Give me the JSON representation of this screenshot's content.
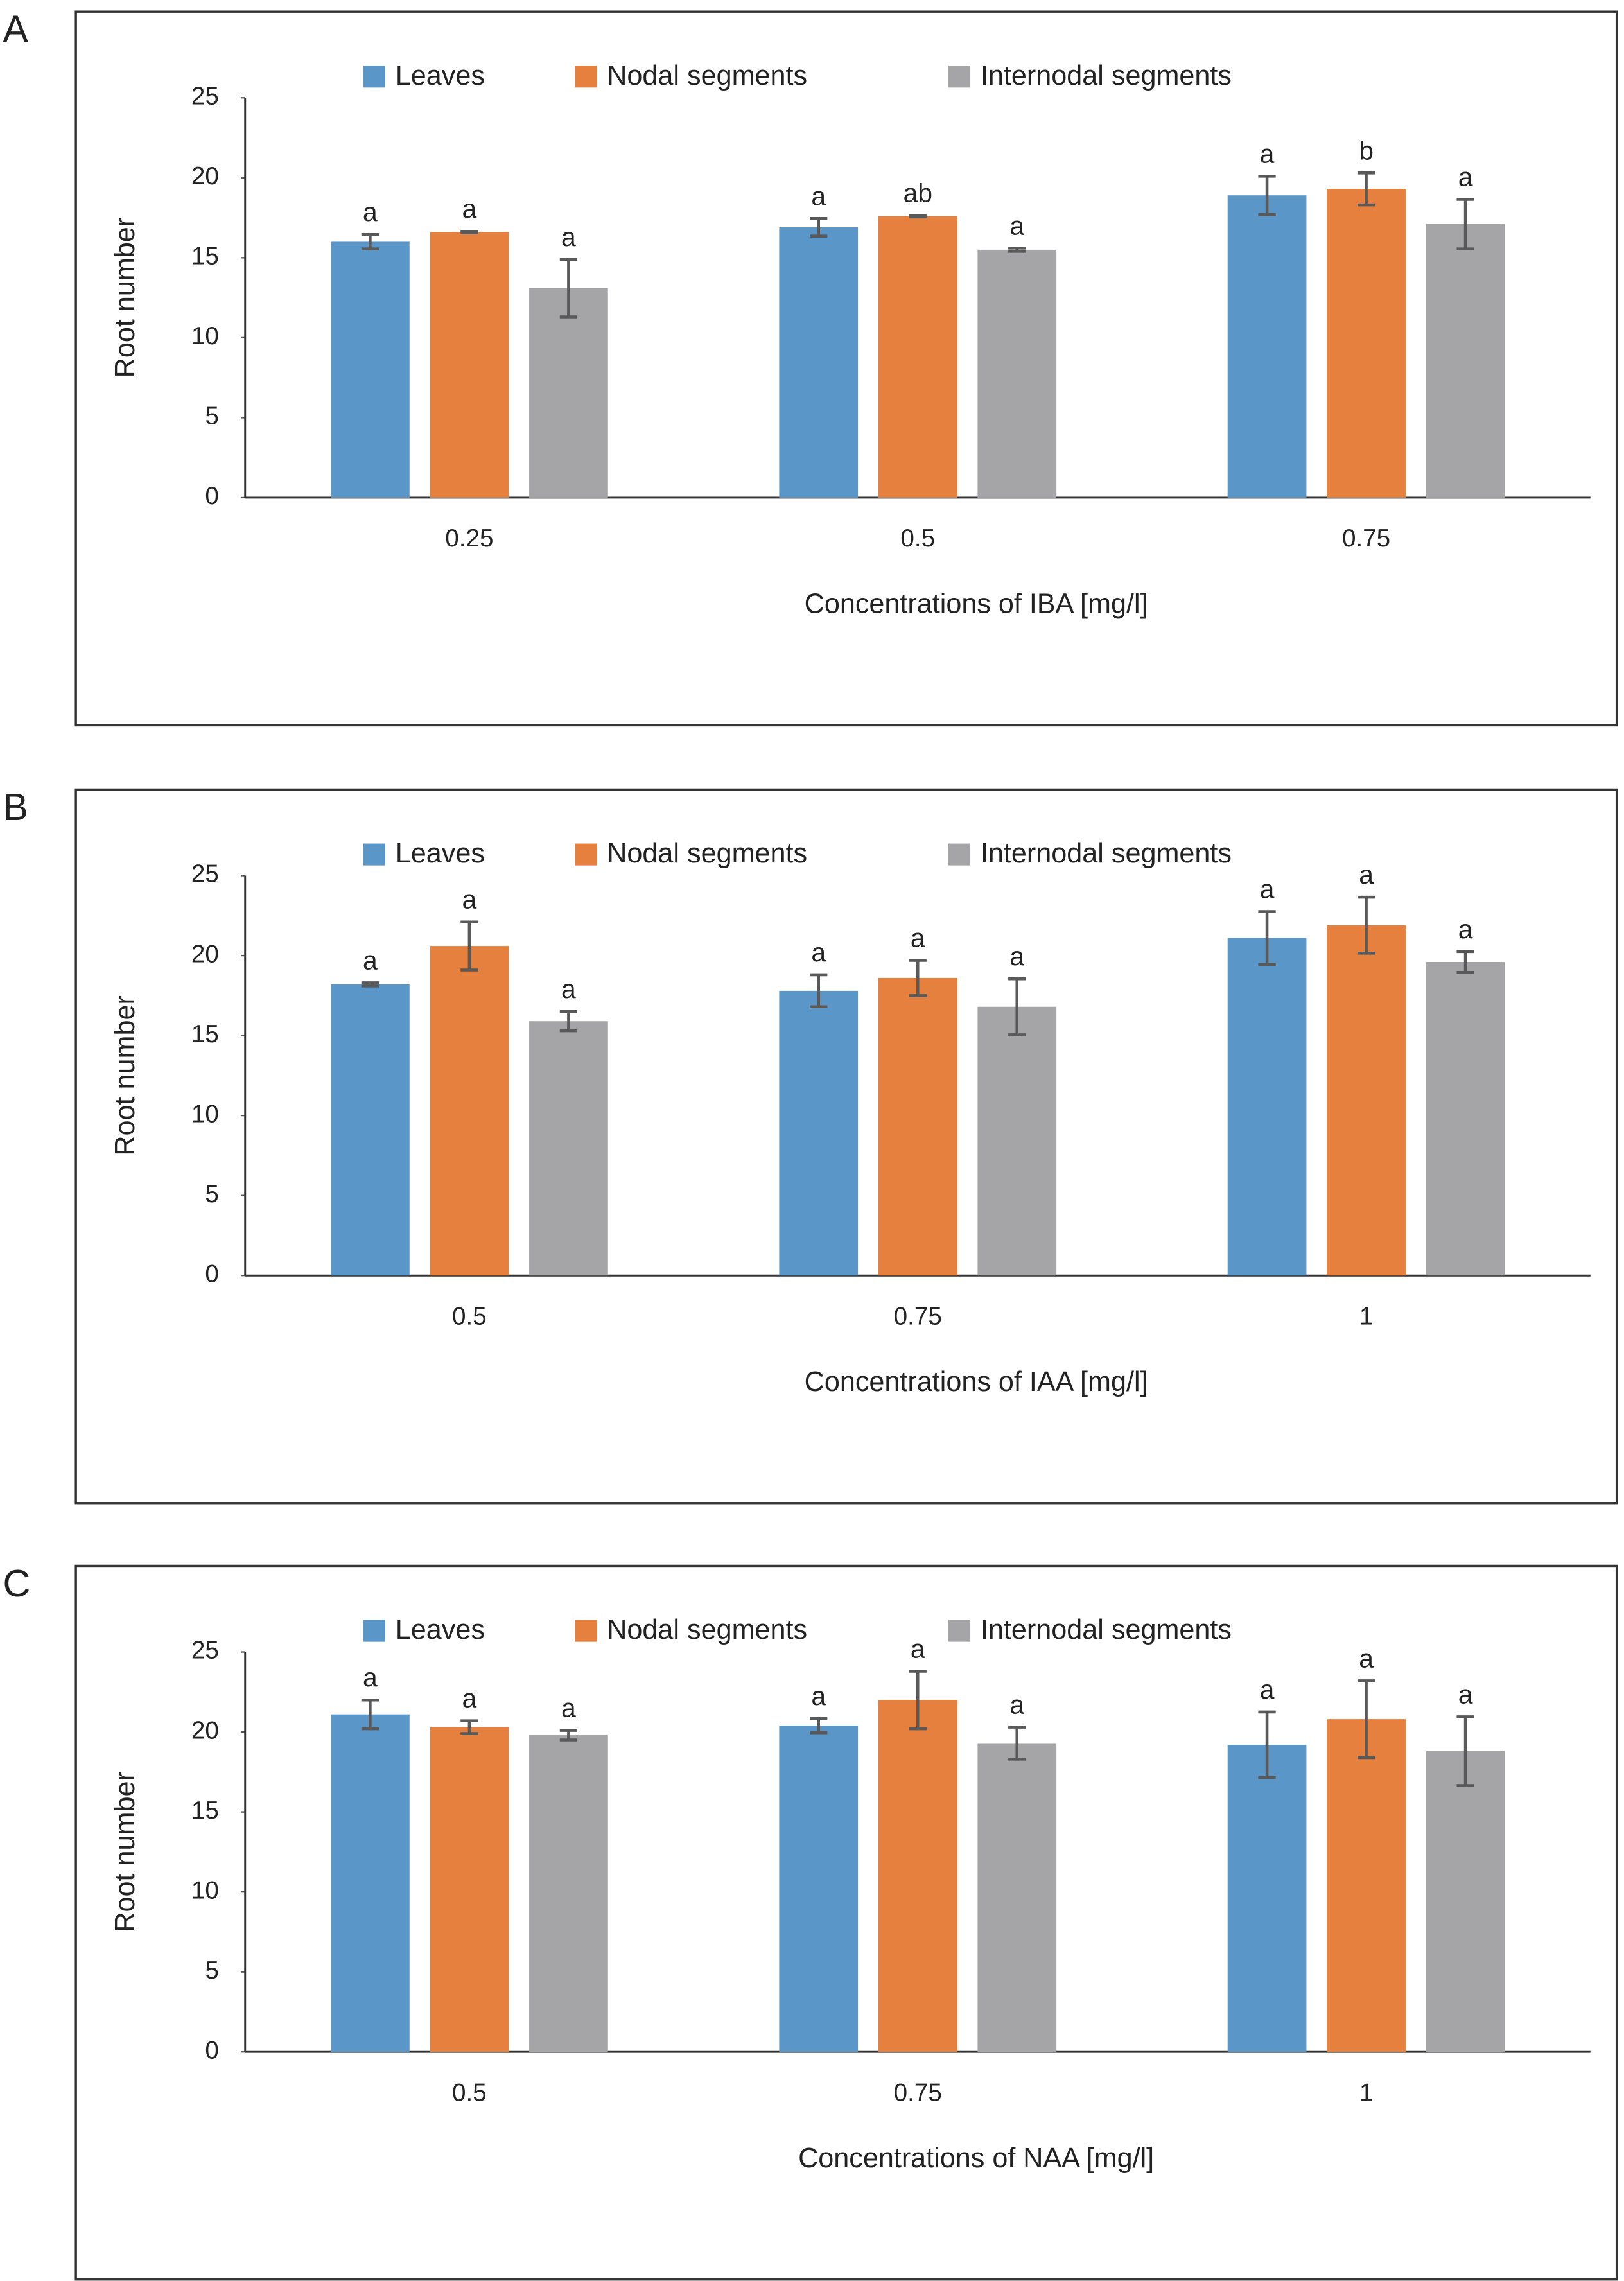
{
  "chart_data": [
    {
      "panel": "A",
      "type": "bar",
      "categories": [
        "0.25",
        "0.5",
        "0.75"
      ],
      "x_label": "Concentrations of IBA [mg/l]",
      "y_label": "Root number",
      "ylim": [
        0,
        25
      ],
      "yticks": [
        0,
        5,
        10,
        15,
        20,
        25
      ],
      "series": [
        {
          "name": "Leaves",
          "color": "#5b96c9",
          "values": [
            16.0,
            16.9,
            18.9
          ],
          "errors": [
            0.45,
            0.55,
            1.2
          ],
          "letters": [
            "a",
            "a",
            "a"
          ]
        },
        {
          "name": "Nodal segments",
          "color": "#e6803f",
          "values": [
            16.6,
            17.6,
            19.3
          ],
          "errors": [
            0.05,
            0.05,
            1.0
          ],
          "letters": [
            "a",
            "ab",
            "b"
          ]
        },
        {
          "name": "Internodal segments",
          "color": "#a5a5a8",
          "values": [
            13.1,
            15.5,
            17.1
          ],
          "errors": [
            1.8,
            0.1,
            1.55
          ],
          "letters": [
            "a",
            "a",
            "a"
          ]
        }
      ]
    },
    {
      "panel": "B",
      "type": "bar",
      "categories": [
        "0.5",
        "0.75",
        "1"
      ],
      "x_label": "Concentrations of IAA [mg/l]",
      "y_label": "Root number",
      "ylim": [
        0,
        25
      ],
      "yticks": [
        0,
        5,
        10,
        15,
        20,
        25
      ],
      "series": [
        {
          "name": "Leaves",
          "color": "#5b96c9",
          "values": [
            18.2,
            17.8,
            21.1
          ],
          "errors": [
            0.1,
            1.0,
            1.65
          ],
          "letters": [
            "a",
            "a",
            "a"
          ]
        },
        {
          "name": "Nodal segments",
          "color": "#e6803f",
          "values": [
            20.6,
            18.6,
            21.9
          ],
          "errors": [
            1.5,
            1.1,
            1.75
          ],
          "letters": [
            "a",
            "a",
            "a"
          ]
        },
        {
          "name": "Internodal segments",
          "color": "#a5a5a8",
          "values": [
            15.9,
            16.8,
            19.6
          ],
          "errors": [
            0.6,
            1.75,
            0.65
          ],
          "letters": [
            "a",
            "a",
            "a"
          ]
        }
      ]
    },
    {
      "panel": "C",
      "type": "bar",
      "categories": [
        "0.5",
        "0.75",
        "1"
      ],
      "x_label": "Concentrations of NAA [mg/l]",
      "y_label": "Root number",
      "ylim": [
        0,
        25
      ],
      "yticks": [
        0,
        5,
        10,
        15,
        20,
        25
      ],
      "series": [
        {
          "name": "Leaves",
          "color": "#5b96c9",
          "values": [
            21.1,
            20.4,
            19.2
          ],
          "errors": [
            0.9,
            0.45,
            2.05
          ],
          "letters": [
            "a",
            "a",
            "a"
          ]
        },
        {
          "name": "Nodal segments",
          "color": "#e6803f",
          "values": [
            20.3,
            22.0,
            20.8
          ],
          "errors": [
            0.4,
            1.8,
            2.4
          ],
          "letters": [
            "a",
            "a",
            "a"
          ]
        },
        {
          "name": "Internodal segments",
          "color": "#a5a5a8",
          "values": [
            19.8,
            19.3,
            18.8
          ],
          "errors": [
            0.3,
            1.0,
            2.15
          ],
          "letters": [
            "a",
            "a",
            "a"
          ]
        }
      ]
    }
  ]
}
